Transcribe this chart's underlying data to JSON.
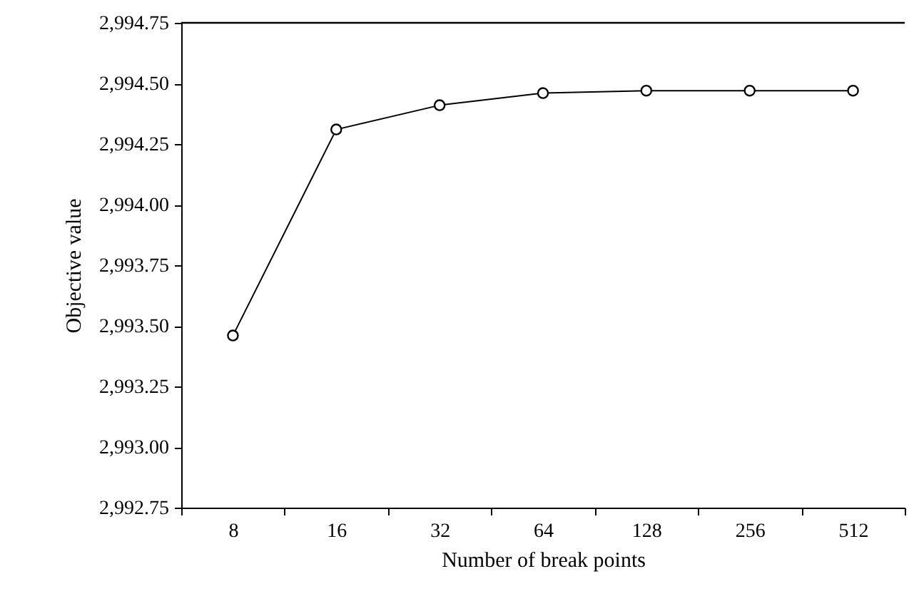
{
  "chart_data": {
    "type": "line",
    "xlabel": "Number of break points",
    "ylabel": "Objective value",
    "categories": [
      "8",
      "16",
      "32",
      "64",
      "128",
      "256",
      "512"
    ],
    "series": [
      {
        "color": "#000000",
        "values": [
          2993.46,
          2994.31,
          2994.41,
          2994.46,
          2994.47,
          2994.47,
          2994.47
        ]
      }
    ],
    "ylim": [
      2992.75,
      2994.75
    ],
    "yticks": [
      {
        "value": 2992.75,
        "label": "2,992.75"
      },
      {
        "value": 2993.0,
        "label": "2,993.00"
      },
      {
        "value": 2993.25,
        "label": "2,993.25"
      },
      {
        "value": 2993.5,
        "label": "2,993.50"
      },
      {
        "value": 2993.75,
        "label": "2,993.75"
      },
      {
        "value": 2994.0,
        "label": "2,994.00"
      },
      {
        "value": 2994.25,
        "label": "2,994.25"
      },
      {
        "value": 2994.5,
        "label": "2,994.50"
      },
      {
        "value": 2994.75,
        "label": "2,994.75"
      }
    ],
    "grid": false,
    "marker": "circle",
    "line_style": "solid"
  }
}
